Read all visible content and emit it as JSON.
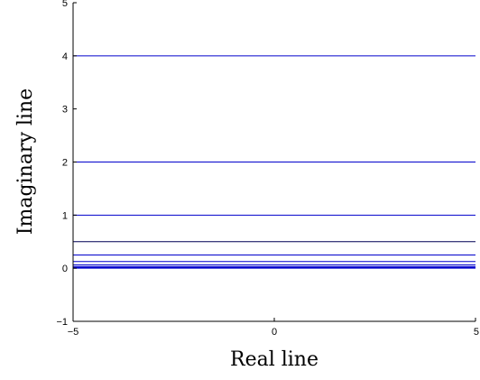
{
  "chart_data": {
    "type": "line",
    "title": "",
    "xlabel": "Real line",
    "ylabel": "Imaginary line",
    "xlim": [
      -5,
      5
    ],
    "ylim": [
      -1,
      5
    ],
    "x_ticks": [
      -5,
      0,
      5
    ],
    "y_ticks": [
      -1,
      0,
      1,
      2,
      3,
      4,
      5
    ],
    "x_tick_labels": [
      "−5",
      "0",
      "5"
    ],
    "y_tick_labels": [
      "−1",
      "0",
      "1",
      "2",
      "3",
      "4",
      "5"
    ],
    "grid": false,
    "legend": "none",
    "box": false,
    "series": [
      {
        "x": [
          -5,
          5
        ],
        "y": [
          4,
          4
        ],
        "color": "#0000cc"
      },
      {
        "x": [
          -5,
          5
        ],
        "y": [
          2,
          2
        ],
        "color": "#0000cc"
      },
      {
        "x": [
          -5,
          5
        ],
        "y": [
          1,
          1
        ],
        "color": "#0000cc"
      },
      {
        "x": [
          -5,
          5
        ],
        "y": [
          0.5,
          0.5
        ],
        "color": "#000055"
      },
      {
        "x": [
          -5,
          5
        ],
        "y": [
          0.25,
          0.25
        ],
        "color": "#0000cc"
      },
      {
        "x": [
          -5,
          5
        ],
        "y": [
          0.125,
          0.125
        ],
        "color": "#0000cc"
      },
      {
        "x": [
          -5,
          5
        ],
        "y": [
          0.0625,
          0.0625
        ],
        "color": "#0000cc"
      },
      {
        "x": [
          -5,
          5
        ],
        "y": [
          0.03125,
          0.03125
        ],
        "color": "#0000cc"
      },
      {
        "x": [
          -5,
          5
        ],
        "y": [
          0.015625,
          0.015625
        ],
        "color": "#0000cc"
      },
      {
        "x": [
          -5,
          5
        ],
        "y": [
          0.0078125,
          0.0078125
        ],
        "color": "#0000cc"
      },
      {
        "x": [
          -5,
          5
        ],
        "y": [
          0,
          0
        ],
        "color": "#0000cc"
      }
    ]
  }
}
